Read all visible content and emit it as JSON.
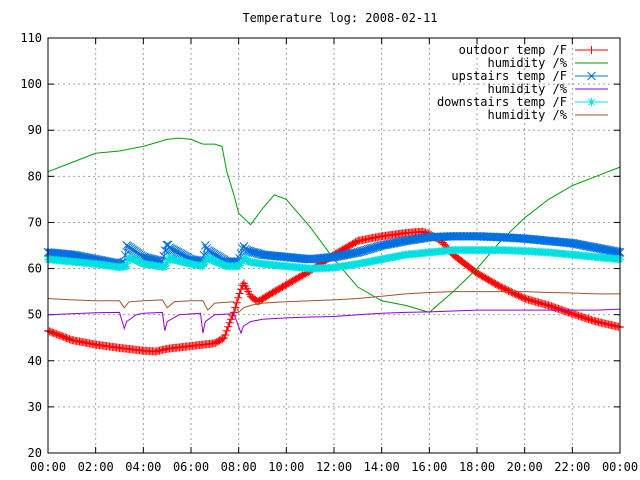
{
  "chart_data": {
    "type": "line",
    "title": "Temperature log: 2008-02-11",
    "xlabel": "",
    "ylabel": "",
    "xlim": [
      0,
      24
    ],
    "ylim": [
      20,
      110
    ],
    "grid": true,
    "legend_position": "top-right",
    "x_ticks": [
      "00:00",
      "02:00",
      "04:00",
      "06:00",
      "08:00",
      "10:00",
      "12:00",
      "14:00",
      "16:00",
      "18:00",
      "20:00",
      "22:00",
      "00:00"
    ],
    "y_ticks": [
      "20",
      "30",
      "40",
      "50",
      "60",
      "70",
      "80",
      "90",
      "100",
      "110"
    ],
    "series": [
      {
        "name": "outdoor temp /F",
        "color": "#ff0000",
        "marker": "plus",
        "x": [
          0,
          1,
          2,
          3,
          4,
          4.5,
          5,
          6,
          7,
          7.4,
          7.6,
          7.8,
          8.0,
          8.2,
          8.5,
          8.8,
          9.5,
          10,
          11,
          12,
          13,
          14,
          15,
          15.7,
          16,
          16.5,
          17,
          18,
          19,
          20,
          21,
          22,
          23,
          24
        ],
        "y": [
          46.5,
          44.5,
          43.5,
          42.8,
          42.2,
          42.0,
          42.6,
          43.2,
          43.8,
          45.0,
          48.0,
          50.5,
          54.0,
          57.0,
          54.0,
          52.8,
          55.0,
          56.5,
          59.5,
          63.0,
          66.0,
          67.0,
          67.7,
          68.0,
          67.5,
          66.0,
          63.0,
          59.0,
          56.0,
          53.5,
          52.0,
          50.2,
          48.5,
          47.3
        ]
      },
      {
        "name": "humidity /%",
        "color": "#00a000",
        "marker": "none",
        "x": [
          0,
          1,
          2,
          3,
          4,
          5,
          5.5,
          6,
          6.5,
          7,
          7.3,
          7.5,
          7.8,
          8.0,
          8.5,
          9.0,
          9.5,
          10,
          11,
          12,
          13,
          14,
          15,
          16,
          17,
          18,
          19,
          20,
          21,
          22,
          23,
          24
        ],
        "y": [
          81.0,
          83.0,
          85.0,
          85.5,
          86.5,
          88.0,
          88.3,
          88.0,
          87.0,
          87.0,
          86.5,
          81.0,
          76.0,
          72.0,
          69.5,
          73.0,
          76.0,
          75.0,
          69.0,
          62.0,
          56.0,
          53.0,
          52.0,
          50.5,
          55.0,
          60.0,
          66.0,
          71.0,
          75.0,
          78.0,
          80.0,
          82.0
        ]
      },
      {
        "name": "upstairs temp /F",
        "color": "#0070e0",
        "marker": "x",
        "x": [
          0,
          1,
          2,
          3,
          3.2,
          3.3,
          4,
          4.8,
          5.0,
          5.1,
          6,
          6.5,
          6.6,
          6.7,
          7.5,
          8.0,
          8.2,
          8.3,
          9,
          10,
          11,
          12,
          13,
          14,
          15,
          16,
          17,
          18,
          19,
          20,
          21,
          22,
          23,
          24
        ],
        "y": [
          63.5,
          63.0,
          62.0,
          61.0,
          61.5,
          65.0,
          62.5,
          61.5,
          65.5,
          64.5,
          62.0,
          61.5,
          65.0,
          64.0,
          61.5,
          61.5,
          65.0,
          64.0,
          63.0,
          62.5,
          62.0,
          62.5,
          63.5,
          65.0,
          66.0,
          66.8,
          67.0,
          67.0,
          66.8,
          66.5,
          66.0,
          65.5,
          64.5,
          63.5
        ]
      },
      {
        "name": "humidity /%",
        "color": "#9400d3",
        "marker": "none",
        "x": [
          0,
          1,
          2,
          3,
          3.2,
          3.3,
          3.7,
          4,
          4.8,
          4.9,
          5.0,
          5.5,
          6.4,
          6.5,
          6.6,
          7,
          7.8,
          8.1,
          8.2,
          8.5,
          9,
          10,
          11,
          12,
          13,
          14,
          15,
          16,
          17,
          18,
          19,
          20,
          21,
          22,
          23,
          24
        ],
        "y": [
          50.0,
          50.2,
          50.4,
          50.5,
          47.0,
          48.5,
          50.0,
          50.3,
          50.5,
          46.5,
          48.5,
          50.0,
          50.3,
          46.0,
          48.5,
          50.0,
          50.2,
          46.0,
          47.5,
          48.5,
          49.0,
          49.3,
          49.5,
          49.6,
          50.0,
          50.3,
          50.5,
          50.6,
          50.8,
          51.0,
          51.0,
          51.0,
          51.0,
          51.0,
          51.0,
          51.2
        ]
      },
      {
        "name": "downstairs temp /F",
        "color": "#00e0e0",
        "marker": "star",
        "x": [
          0,
          1,
          2,
          3,
          3.3,
          3.4,
          4,
          4.9,
          5.1,
          5.2,
          6,
          6.5,
          6.7,
          6.8,
          7.5,
          8.0,
          8.3,
          8.4,
          9,
          10,
          11,
          12,
          13,
          14,
          15,
          16,
          17,
          18,
          19,
          20,
          21,
          22,
          23,
          24
        ],
        "y": [
          62.0,
          61.5,
          61.0,
          60.3,
          60.5,
          62.5,
          61.0,
          60.3,
          62.5,
          62.0,
          61.0,
          60.5,
          62.5,
          62.0,
          60.5,
          60.5,
          62.5,
          61.5,
          61.0,
          60.5,
          60.0,
          60.2,
          61.0,
          62.0,
          63.0,
          63.5,
          64.0,
          64.0,
          64.0,
          63.8,
          63.5,
          63.0,
          62.5,
          62.0
        ]
      },
      {
        "name": "humidity /%",
        "color": "#a0522d",
        "marker": "none",
        "x": [
          0,
          1,
          2,
          3,
          3.2,
          3.4,
          4,
          4.8,
          5.0,
          5.3,
          6,
          6.5,
          6.7,
          7.0,
          7.8,
          8.0,
          8.2,
          8.5,
          9,
          10,
          11,
          12,
          13,
          14,
          15,
          16,
          17,
          18,
          19,
          20,
          21,
          22,
          23,
          24
        ],
        "y": [
          53.5,
          53.2,
          53.0,
          53.0,
          51.5,
          52.8,
          53.0,
          53.2,
          51.5,
          52.8,
          53.0,
          53.0,
          51.0,
          52.5,
          52.8,
          50.5,
          51.5,
          52.0,
          52.5,
          52.8,
          53.0,
          53.2,
          53.5,
          54.0,
          54.5,
          54.8,
          55.0,
          55.0,
          55.0,
          55.0,
          54.8,
          54.7,
          54.5,
          54.5
        ]
      }
    ]
  }
}
